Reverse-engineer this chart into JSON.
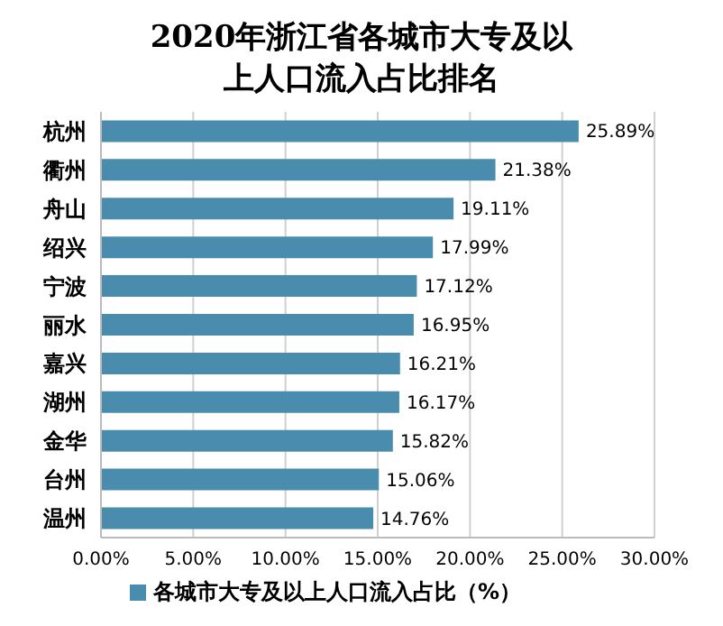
{
  "chart_data": {
    "type": "bar",
    "orientation": "horizontal",
    "title": "2020年浙江省各城市大专及以上人口流入占比排名",
    "categories": [
      "杭州",
      "衢州",
      "舟山",
      "绍兴",
      "宁波",
      "丽水",
      "嘉兴",
      "湖州",
      "金华",
      "台州",
      "温州"
    ],
    "series": [
      {
        "name": "各城市大专及以上人口流入占比（%）",
        "color": "#4a8cad",
        "values": [
          25.89,
          21.38,
          19.11,
          17.99,
          17.12,
          16.95,
          16.21,
          16.17,
          15.82,
          15.06,
          14.76
        ],
        "value_labels": [
          "25.89%",
          "21.38%",
          "19.11%",
          "17.99%",
          "17.12%",
          "16.95%",
          "16.21%",
          "16.17%",
          "15.82%",
          "15.06%",
          "14.76%"
        ]
      }
    ],
    "xlim": [
      0,
      30
    ],
    "xticks": [
      {
        "value": 0,
        "label": "0.00%"
      },
      {
        "value": 5,
        "label": "5.00%"
      },
      {
        "value": 10,
        "label": "10.00%"
      },
      {
        "value": 15,
        "label": "15.00%"
      },
      {
        "value": 20,
        "label": "20.00%"
      },
      {
        "value": 25,
        "label": "25.00%"
      },
      {
        "value": 30,
        "label": "30.00%"
      }
    ],
    "grid": "x",
    "legend": "bottom"
  }
}
